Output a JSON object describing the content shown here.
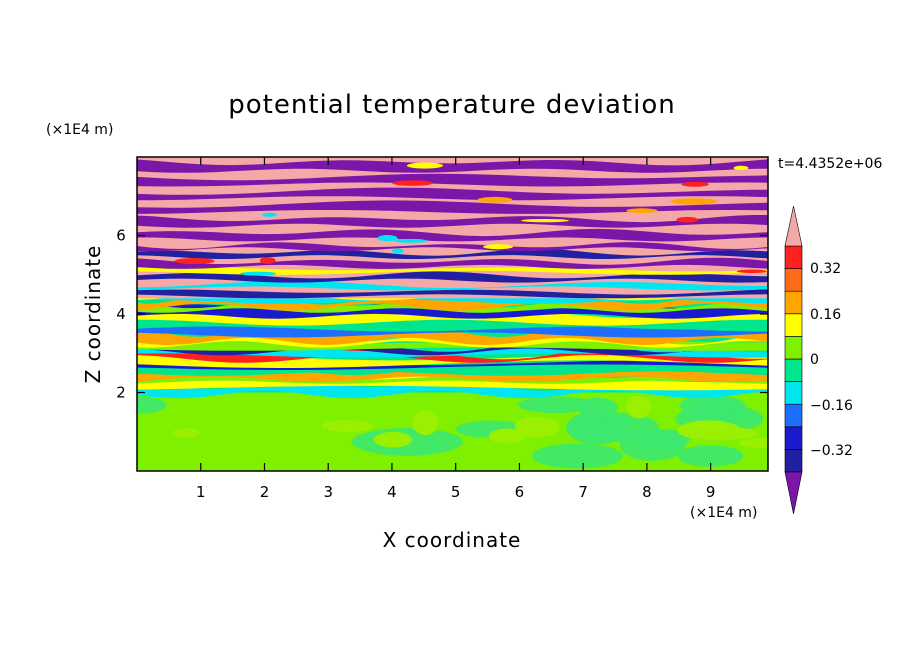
{
  "chart_data": {
    "type": "heatmap",
    "title": "potential temperature deviation",
    "xlabel": "X coordinate",
    "ylabel": "Z coordinate",
    "x_unit": "(×1E4 m)",
    "y_unit": "(×1E4 m)",
    "time_label": "t=4.4352e+06",
    "xlim": [
      0,
      9.9
    ],
    "ylim": [
      0,
      8
    ],
    "x_ticks": [
      "1",
      "2",
      "3",
      "4",
      "5",
      "6",
      "7",
      "8",
      "9"
    ],
    "y_ticks": [
      "2",
      "4",
      "6"
    ],
    "colorbar": {
      "ticks": [
        "0.32",
        "0.16",
        "0",
        "−0.16",
        "−0.32"
      ],
      "levels": [
        -0.4,
        -0.32,
        -0.24,
        -0.16,
        -0.08,
        0,
        0.08,
        0.16,
        0.24,
        0.32,
        0.4
      ],
      "under_color": "#7b16a8",
      "over_color": "#f4a8a8",
      "colors": [
        "#2020a0",
        "#1a1ad0",
        "#1f6fff",
        "#00e6f0",
        "#00e68c",
        "#7ef000",
        "#ffff00",
        "#ffa500",
        "#ff6a1a",
        "#ff2020"
      ]
    },
    "layers": [
      {
        "z_range": [
          0,
          2.0
        ],
        "value": 0.02,
        "description_color": "#7ef000"
      },
      {
        "z_range": [
          2.0,
          4.5
        ],
        "value": "mixed"
      },
      {
        "z_range": [
          4.5,
          8.0
        ],
        "value": "alternating"
      }
    ]
  }
}
